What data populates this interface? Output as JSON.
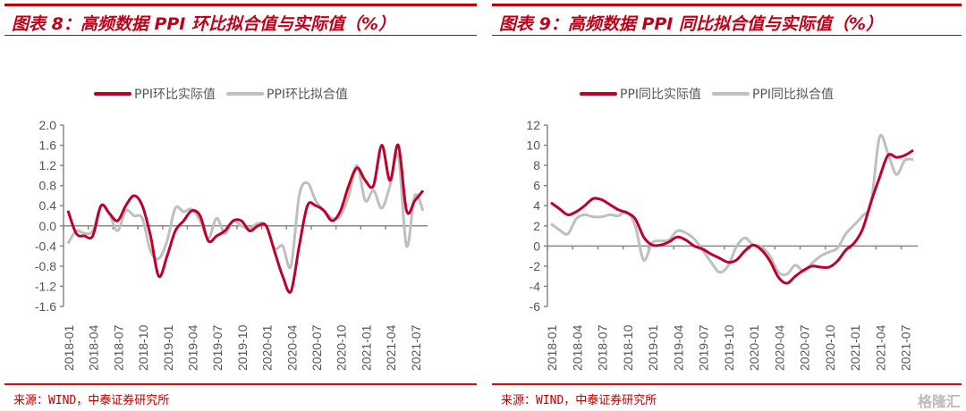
{
  "panels": [
    {
      "title": "图表 8：高频数据 PPI 环比拟合值与实际值（%）",
      "source": "来源：WIND，中泰证券研究所"
    },
    {
      "title": "图表 9：高频数据 PPI 同比拟合值与实际值（%）",
      "source": "来源：WIND，中泰证券研究所"
    }
  ],
  "watermark": "格隆汇",
  "chart_data": [
    {
      "type": "line",
      "title": "",
      "xlabel": "",
      "ylabel": "",
      "ylim": [
        -1.6,
        2.0
      ],
      "yticks": [
        "2.0",
        "1.6",
        "1.2",
        "0.8",
        "0.4",
        "0.0",
        "-0.4",
        "-0.8",
        "-1.2",
        "-1.6"
      ],
      "ytick_values": [
        2.0,
        1.6,
        1.2,
        0.8,
        0.4,
        0.0,
        -0.4,
        -0.8,
        -1.2,
        -1.6
      ],
      "xtick_labels": [
        "2018-01",
        "2018-04",
        "2018-07",
        "2018-10",
        "2019-01",
        "2019-04",
        "2019-07",
        "2019-10",
        "2020-01",
        "2020-04",
        "2020-07",
        "2020-10",
        "2021-01",
        "2021-04",
        "2021-07"
      ],
      "x_range": [
        "2018-01",
        "2021-08"
      ],
      "legend": "top",
      "grid": false,
      "series": [
        {
          "name": "PPI环比实际值",
          "color": "#c0002a",
          "values": [
            0.3,
            -0.15,
            -0.2,
            -0.2,
            0.4,
            0.25,
            0.1,
            0.4,
            0.6,
            0.4,
            -0.2,
            -1.0,
            -0.6,
            -0.1,
            0.1,
            0.3,
            0.2,
            -0.3,
            -0.2,
            -0.1,
            0.1,
            0.1,
            -0.1,
            0.0,
            0.0,
            -0.5,
            -1.0,
            -1.3,
            -0.4,
            0.4,
            0.4,
            0.3,
            0.1,
            0.3,
            0.8,
            1.15,
            0.9,
            0.8,
            1.6,
            0.9,
            1.6,
            0.3,
            0.5,
            0.7
          ]
        },
        {
          "name": "PPI环比拟合值",
          "color": "#bfbfbf",
          "values": [
            -0.35,
            -0.1,
            -0.15,
            -0.1,
            0.4,
            0.25,
            -0.1,
            0.3,
            0.2,
            0.15,
            -0.5,
            -0.65,
            -0.3,
            0.35,
            0.28,
            0.33,
            0.1,
            -0.25,
            0.15,
            -0.15,
            0.1,
            0.0,
            -0.05,
            0.05,
            0.0,
            -0.45,
            -0.4,
            -0.8,
            0.6,
            0.85,
            0.5,
            0.3,
            0.15,
            0.2,
            0.6,
            1.2,
            0.5,
            0.7,
            0.35,
            0.8,
            1.4,
            -0.4,
            0.6,
            0.3
          ]
        }
      ]
    },
    {
      "type": "line",
      "title": "",
      "xlabel": "",
      "ylabel": "",
      "ylim": [
        -6,
        12
      ],
      "yticks": [
        "12",
        "10",
        "8",
        "6",
        "4",
        "2",
        "0",
        "-2",
        "-4",
        "-6"
      ],
      "ytick_values": [
        12,
        10,
        8,
        6,
        4,
        2,
        0,
        -2,
        -4,
        -6
      ],
      "xtick_labels": [
        "2018-01",
        "2018-04",
        "2018-07",
        "2018-10",
        "2019-01",
        "2019-04",
        "2019-07",
        "2019-10",
        "2020-01",
        "2020-04",
        "2020-07",
        "2020-10",
        "2021-01",
        "2021-04",
        "2021-07"
      ],
      "x_range": [
        "2018-01",
        "2021-08"
      ],
      "legend": "top",
      "grid": false,
      "series": [
        {
          "name": "PPI同比实际值",
          "color": "#c0002a",
          "values": [
            4.3,
            3.7,
            3.1,
            3.4,
            4.0,
            4.7,
            4.6,
            4.1,
            3.6,
            3.3,
            2.7,
            0.9,
            0.1,
            0.1,
            0.4,
            0.9,
            0.6,
            0.0,
            -0.3,
            -0.8,
            -1.2,
            -1.6,
            -1.4,
            -0.5,
            0.1,
            -0.4,
            -1.5,
            -3.1,
            -3.7,
            -3.0,
            -2.4,
            -2.0,
            -2.1,
            -2.1,
            -1.5,
            -0.4,
            0.3,
            1.7,
            4.4,
            6.8,
            9.0,
            8.8,
            9.0,
            9.5
          ]
        },
        {
          "name": "PPI同比拟合值",
          "color": "#bfbfbf",
          "values": [
            2.2,
            1.6,
            1.2,
            2.7,
            3.1,
            2.9,
            2.9,
            3.1,
            3.0,
            3.4,
            2.0,
            -1.4,
            0.3,
            0.5,
            0.6,
            1.5,
            1.3,
            0.7,
            -0.4,
            -1.6,
            -2.6,
            -2.0,
            -0.1,
            0.8,
            0.1,
            -0.1,
            -1.0,
            -2.6,
            -2.8,
            -1.9,
            -2.5,
            -1.7,
            -1.0,
            -0.6,
            -0.2,
            1.2,
            2.1,
            3.0,
            4.3,
            10.8,
            9.2,
            7.1,
            8.5,
            8.6
          ]
        }
      ]
    }
  ]
}
